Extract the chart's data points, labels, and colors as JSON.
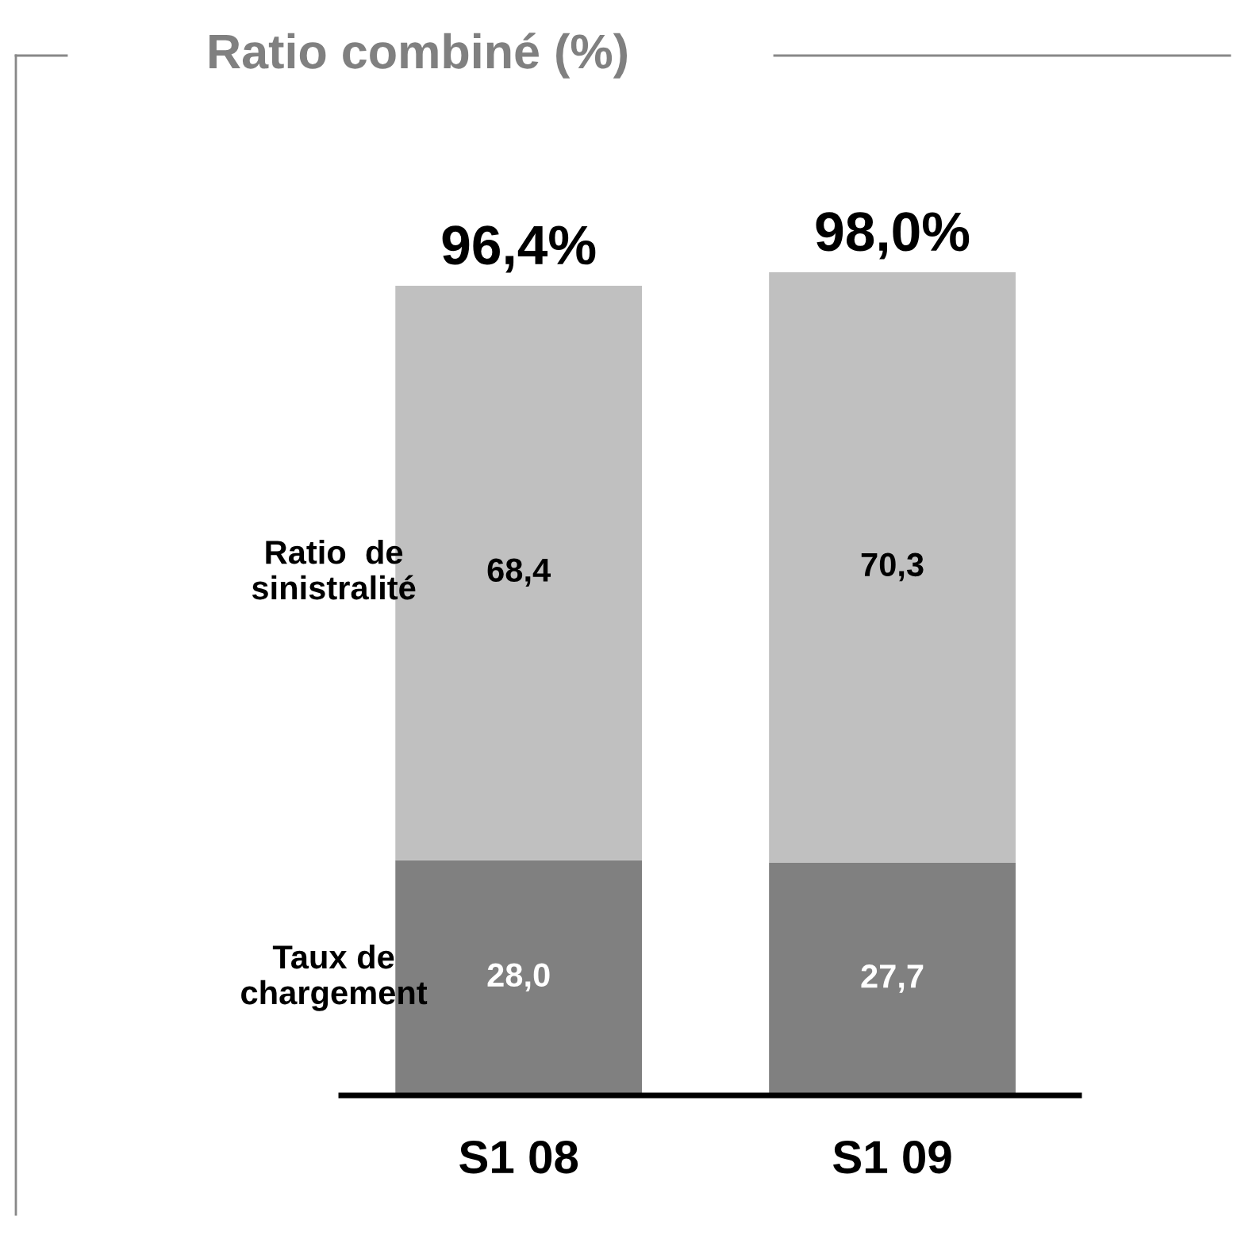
{
  "chart_data": {
    "type": "bar",
    "title": "Ratio combiné (%)",
    "stacked": true,
    "categories": [
      "S1 08",
      "S1 09"
    ],
    "series": [
      {
        "name": "Taux de\nchargement",
        "color": "#808080",
        "values": [
          28.0,
          27.7
        ],
        "value_labels": [
          "28,0",
          "27,7"
        ]
      },
      {
        "name": "Ratio  de\nsinistralité",
        "color": "#c0c0c0",
        "values": [
          68.4,
          70.3
        ],
        "value_labels": [
          "68,4",
          "70,3"
        ]
      }
    ],
    "totals": [
      "96,4%",
      "98,0%"
    ],
    "legend": false,
    "grid": false
  }
}
